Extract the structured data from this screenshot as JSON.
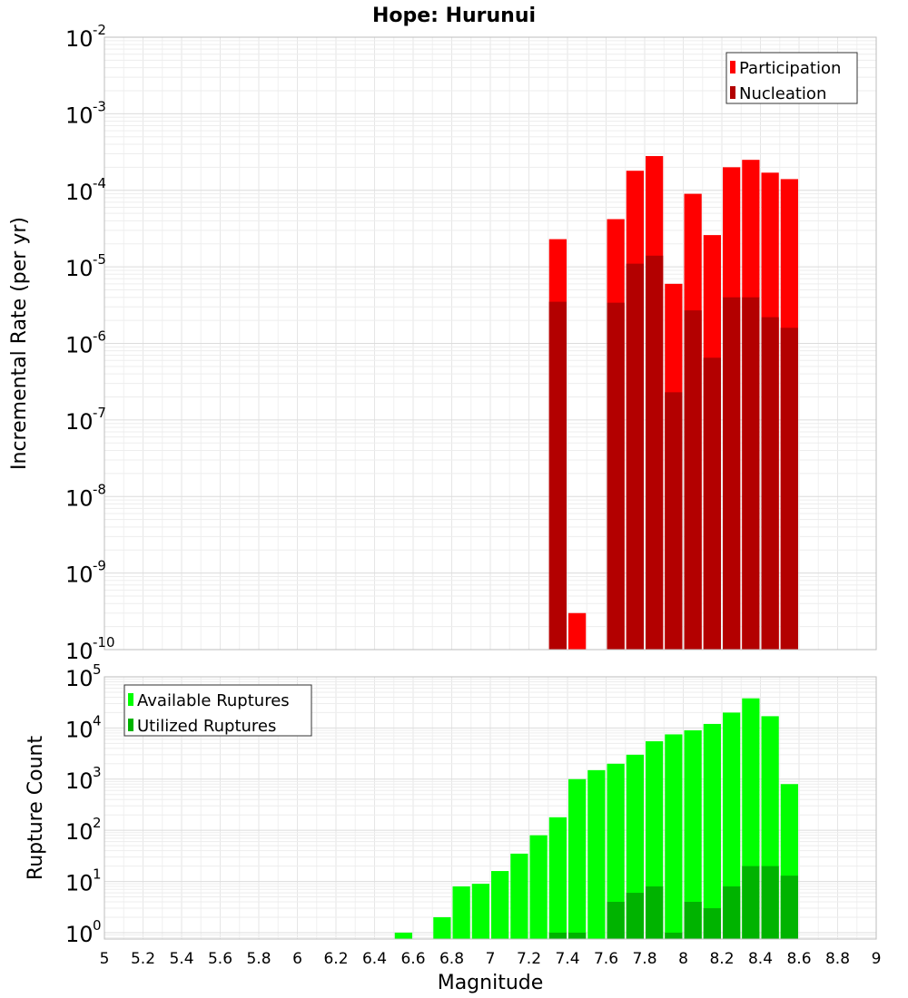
{
  "chart_data": [
    {
      "type": "bar",
      "title": "Hope: Hurunui",
      "xlabel": "Magnitude",
      "ylabel": "Incremental Rate (per yr)",
      "yscale": "log",
      "ylim": [
        1e-10,
        0.01
      ],
      "xlim": [
        5,
        9
      ],
      "bin_width": 0.1,
      "grid": true,
      "legend_position": "top-right",
      "x": [
        7.35,
        7.45,
        7.65,
        7.75,
        7.85,
        7.95,
        8.05,
        8.15,
        8.25,
        8.35,
        8.45,
        8.55
      ],
      "series": [
        {
          "name": "Participation",
          "color": "#ff0000",
          "values": [
            2.3e-05,
            3e-10,
            4.2e-05,
            0.00018,
            0.00028,
            6e-06,
            9e-05,
            2.6e-05,
            0.0002,
            0.00025,
            0.00017,
            0.00014
          ]
        },
        {
          "name": "Nucleation",
          "color": "#b30000",
          "values": [
            3.5e-06,
            null,
            3.4e-06,
            1.1e-05,
            1.4e-05,
            2.3e-07,
            2.7e-06,
            6.5e-07,
            4e-06,
            4e-06,
            2.2e-06,
            1.6e-06
          ]
        }
      ],
      "yticks": [
        {
          "base": "10",
          "exp": "-10"
        },
        {
          "base": "10",
          "exp": "-9"
        },
        {
          "base": "10",
          "exp": "-8"
        },
        {
          "base": "10",
          "exp": "-7"
        },
        {
          "base": "10",
          "exp": "-6"
        },
        {
          "base": "10",
          "exp": "-5"
        },
        {
          "base": "10",
          "exp": "-4"
        },
        {
          "base": "10",
          "exp": "-3"
        },
        {
          "base": "10",
          "exp": "-2"
        }
      ]
    },
    {
      "type": "bar",
      "xlabel": "Magnitude",
      "ylabel": "Rupture Count",
      "yscale": "log",
      "ylim": [
        0.75,
        100000.0
      ],
      "xlim": [
        5,
        9
      ],
      "bin_width": 0.1,
      "grid": true,
      "legend_position": "top-left",
      "x": [
        6.55,
        6.75,
        6.85,
        6.95,
        7.05,
        7.15,
        7.25,
        7.35,
        7.45,
        7.55,
        7.65,
        7.75,
        7.85,
        7.95,
        8.05,
        8.15,
        8.25,
        8.35,
        8.45,
        8.55
      ],
      "series": [
        {
          "name": "Available Ruptures",
          "color": "#00ff00",
          "values": [
            1,
            2,
            8,
            9,
            16,
            35,
            80,
            180,
            1000,
            1500,
            2000,
            3000,
            5500,
            7500,
            9000,
            12000,
            20000,
            38000,
            17000,
            800
          ]
        },
        {
          "name": "Utilized Ruptures",
          "color": "#00b300",
          "values": [
            null,
            null,
            null,
            null,
            null,
            null,
            null,
            1,
            1,
            null,
            4,
            6,
            8,
            1,
            4,
            3,
            8,
            20,
            20,
            13
          ]
        }
      ],
      "yticks": [
        {
          "base": "10",
          "exp": "0"
        },
        {
          "base": "10",
          "exp": "1"
        },
        {
          "base": "10",
          "exp": "2"
        },
        {
          "base": "10",
          "exp": "3"
        },
        {
          "base": "10",
          "exp": "4"
        },
        {
          "base": "10",
          "exp": "5"
        }
      ],
      "xticks": [
        "5",
        "5.2",
        "5.4",
        "5.6",
        "5.8",
        "6",
        "6.2",
        "6.4",
        "6.6",
        "6.8",
        "7",
        "7.2",
        "7.4",
        "7.6",
        "7.8",
        "8",
        "8.2",
        "8.4",
        "8.6",
        "8.8",
        "9"
      ]
    }
  ]
}
